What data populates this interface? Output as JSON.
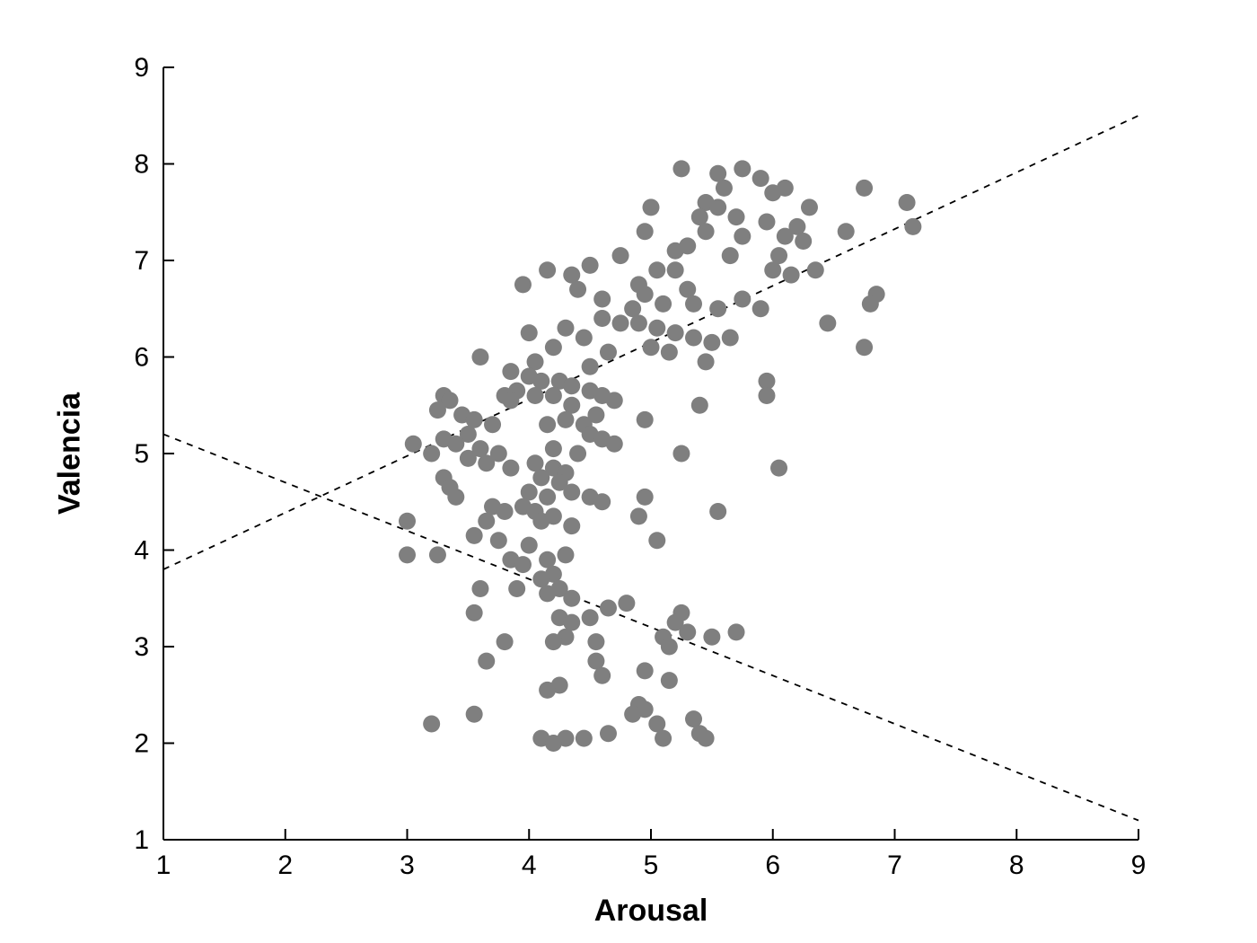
{
  "chart_data": {
    "type": "scatter",
    "title": "",
    "xlabel": "Arousal",
    "ylabel": "Valencia",
    "xlim": [
      1,
      9
    ],
    "ylim": [
      1,
      9
    ],
    "xticks": [
      1,
      2,
      3,
      4,
      5,
      6,
      7,
      8,
      9
    ],
    "yticks": [
      1,
      2,
      3,
      4,
      5,
      6,
      7,
      8,
      9
    ],
    "grid": false,
    "legend": "none",
    "marker": {
      "shape": "circle",
      "color": "#7f7f7f",
      "radius": 9.5
    },
    "axis_color": "#000000",
    "tick_label_size": 30,
    "lines": [
      {
        "name": "ascending-dashed-fit",
        "style": "dashed",
        "color": "#000000",
        "x1": 1,
        "y1": 3.8,
        "x2": 9,
        "y2": 8.5
      },
      {
        "name": "descending-dashed-fit",
        "style": "dashed",
        "color": "#000000",
        "x1": 1,
        "y1": 5.2,
        "x2": 9,
        "y2": 1.2
      }
    ],
    "points": [
      [
        5.25,
        7.95
      ],
      [
        5.55,
        7.9
      ],
      [
        5.75,
        7.95
      ],
      [
        5.9,
        7.85
      ],
      [
        5.6,
        7.75
      ],
      [
        6.0,
        7.7
      ],
      [
        6.1,
        7.75
      ],
      [
        6.75,
        7.75
      ],
      [
        5.45,
        7.6
      ],
      [
        5.55,
        7.55
      ],
      [
        6.3,
        7.55
      ],
      [
        7.1,
        7.6
      ],
      [
        5.0,
        7.55
      ],
      [
        5.4,
        7.45
      ],
      [
        5.7,
        7.45
      ],
      [
        5.95,
        7.4
      ],
      [
        6.2,
        7.35
      ],
      [
        7.15,
        7.35
      ],
      [
        5.45,
        7.3
      ],
      [
        5.75,
        7.25
      ],
      [
        6.1,
        7.25
      ],
      [
        4.95,
        7.3
      ],
      [
        5.3,
        7.15
      ],
      [
        6.25,
        7.2
      ],
      [
        6.6,
        7.3
      ],
      [
        5.2,
        7.1
      ],
      [
        5.65,
        7.05
      ],
      [
        6.05,
        7.05
      ],
      [
        4.75,
        7.05
      ],
      [
        4.5,
        6.95
      ],
      [
        4.15,
        6.9
      ],
      [
        5.2,
        6.9
      ],
      [
        5.05,
        6.9
      ],
      [
        6.0,
        6.9
      ],
      [
        6.35,
        6.9
      ],
      [
        4.35,
        6.85
      ],
      [
        6.15,
        6.85
      ],
      [
        4.9,
        6.75
      ],
      [
        3.95,
        6.75
      ],
      [
        4.4,
        6.7
      ],
      [
        5.3,
        6.7
      ],
      [
        4.95,
        6.65
      ],
      [
        6.85,
        6.65
      ],
      [
        4.6,
        6.6
      ],
      [
        5.75,
        6.6
      ],
      [
        5.35,
        6.55
      ],
      [
        6.8,
        6.55
      ],
      [
        5.1,
        6.55
      ],
      [
        5.55,
        6.5
      ],
      [
        5.9,
        6.5
      ],
      [
        4.85,
        6.5
      ],
      [
        4.6,
        6.4
      ],
      [
        6.45,
        6.35
      ],
      [
        4.75,
        6.35
      ],
      [
        4.9,
        6.35
      ],
      [
        5.05,
        6.3
      ],
      [
        4.3,
        6.3
      ],
      [
        5.2,
        6.25
      ],
      [
        4.0,
        6.25
      ],
      [
        4.45,
        6.2
      ],
      [
        5.35,
        6.2
      ],
      [
        5.65,
        6.2
      ],
      [
        5.5,
        6.15
      ],
      [
        4.2,
        6.1
      ],
      [
        6.75,
        6.1
      ],
      [
        5.0,
        6.1
      ],
      [
        4.65,
        6.05
      ],
      [
        5.15,
        6.05
      ],
      [
        3.6,
        6.0
      ],
      [
        4.05,
        5.95
      ],
      [
        5.45,
        5.95
      ],
      [
        4.5,
        5.9
      ],
      [
        3.85,
        5.85
      ],
      [
        4.0,
        5.8
      ],
      [
        4.1,
        5.75
      ],
      [
        4.25,
        5.75
      ],
      [
        5.95,
        5.75
      ],
      [
        4.35,
        5.7
      ],
      [
        3.9,
        5.65
      ],
      [
        4.5,
        5.65
      ],
      [
        4.05,
        5.6
      ],
      [
        4.2,
        5.6
      ],
      [
        4.6,
        5.6
      ],
      [
        3.8,
        5.6
      ],
      [
        5.95,
        5.6
      ],
      [
        3.3,
        5.6
      ],
      [
        3.85,
        5.55
      ],
      [
        4.7,
        5.55
      ],
      [
        3.35,
        5.55
      ],
      [
        5.4,
        5.5
      ],
      [
        4.35,
        5.5
      ],
      [
        3.25,
        5.45
      ],
      [
        3.45,
        5.4
      ],
      [
        4.55,
        5.4
      ],
      [
        3.55,
        5.35
      ],
      [
        4.3,
        5.35
      ],
      [
        4.45,
        5.3
      ],
      [
        4.15,
        5.3
      ],
      [
        3.7,
        5.3
      ],
      [
        4.5,
        5.2
      ],
      [
        3.5,
        5.2
      ],
      [
        4.6,
        5.15
      ],
      [
        3.3,
        5.15
      ],
      [
        3.4,
        5.1
      ],
      [
        4.7,
        5.1
      ],
      [
        3.05,
        5.1
      ],
      [
        3.6,
        5.05
      ],
      [
        4.2,
        5.05
      ],
      [
        4.4,
        5.0
      ],
      [
        3.75,
        5.0
      ],
      [
        3.2,
        5.0
      ],
      [
        5.25,
        5.0
      ],
      [
        4.95,
        5.35
      ],
      [
        3.5,
        4.95
      ],
      [
        3.65,
        4.9
      ],
      [
        4.05,
        4.9
      ],
      [
        3.85,
        4.85
      ],
      [
        4.2,
        4.85
      ],
      [
        6.05,
        4.85
      ],
      [
        4.3,
        4.8
      ],
      [
        3.3,
        4.75
      ],
      [
        4.1,
        4.75
      ],
      [
        4.25,
        4.7
      ],
      [
        3.35,
        4.65
      ],
      [
        4.0,
        4.6
      ],
      [
        4.35,
        4.6
      ],
      [
        4.15,
        4.55
      ],
      [
        3.4,
        4.55
      ],
      [
        4.5,
        4.55
      ],
      [
        4.95,
        4.55
      ],
      [
        4.6,
        4.5
      ],
      [
        3.7,
        4.45
      ],
      [
        3.95,
        4.45
      ],
      [
        5.55,
        4.4
      ],
      [
        3.8,
        4.4
      ],
      [
        4.05,
        4.4
      ],
      [
        4.9,
        4.35
      ],
      [
        4.2,
        4.35
      ],
      [
        3.65,
        4.3
      ],
      [
        3.0,
        4.3
      ],
      [
        4.1,
        4.3
      ],
      [
        4.35,
        4.25
      ],
      [
        3.55,
        4.15
      ],
      [
        3.75,
        4.1
      ],
      [
        5.05,
        4.1
      ],
      [
        4.0,
        4.05
      ],
      [
        4.3,
        3.95
      ],
      [
        3.0,
        3.95
      ],
      [
        3.25,
        3.95
      ],
      [
        3.85,
        3.9
      ],
      [
        4.15,
        3.9
      ],
      [
        3.95,
        3.85
      ],
      [
        4.2,
        3.75
      ],
      [
        4.1,
        3.7
      ],
      [
        3.9,
        3.6
      ],
      [
        4.25,
        3.6
      ],
      [
        3.6,
        3.6
      ],
      [
        4.15,
        3.55
      ],
      [
        4.35,
        3.5
      ],
      [
        4.8,
        3.45
      ],
      [
        4.65,
        3.4
      ],
      [
        5.25,
        3.35
      ],
      [
        3.55,
        3.35
      ],
      [
        4.25,
        3.3
      ],
      [
        4.5,
        3.3
      ],
      [
        5.2,
        3.25
      ],
      [
        4.35,
        3.25
      ],
      [
        5.3,
        3.15
      ],
      [
        5.7,
        3.15
      ],
      [
        5.1,
        3.1
      ],
      [
        4.3,
        3.1
      ],
      [
        5.5,
        3.1
      ],
      [
        4.55,
        3.05
      ],
      [
        3.8,
        3.05
      ],
      [
        4.2,
        3.05
      ],
      [
        5.15,
        3.0
      ],
      [
        3.65,
        2.85
      ],
      [
        4.55,
        2.85
      ],
      [
        4.95,
        2.75
      ],
      [
        4.6,
        2.7
      ],
      [
        5.15,
        2.65
      ],
      [
        4.25,
        2.6
      ],
      [
        4.15,
        2.55
      ],
      [
        4.9,
        2.4
      ],
      [
        4.95,
        2.35
      ],
      [
        5.35,
        2.25
      ],
      [
        4.85,
        2.3
      ],
      [
        3.55,
        2.3
      ],
      [
        5.05,
        2.2
      ],
      [
        3.2,
        2.2
      ],
      [
        4.65,
        2.1
      ],
      [
        5.4,
        2.1
      ],
      [
        4.1,
        2.05
      ],
      [
        4.3,
        2.05
      ],
      [
        4.45,
        2.05
      ],
      [
        5.1,
        2.05
      ],
      [
        5.45,
        2.05
      ],
      [
        4.2,
        2.0
      ]
    ]
  }
}
